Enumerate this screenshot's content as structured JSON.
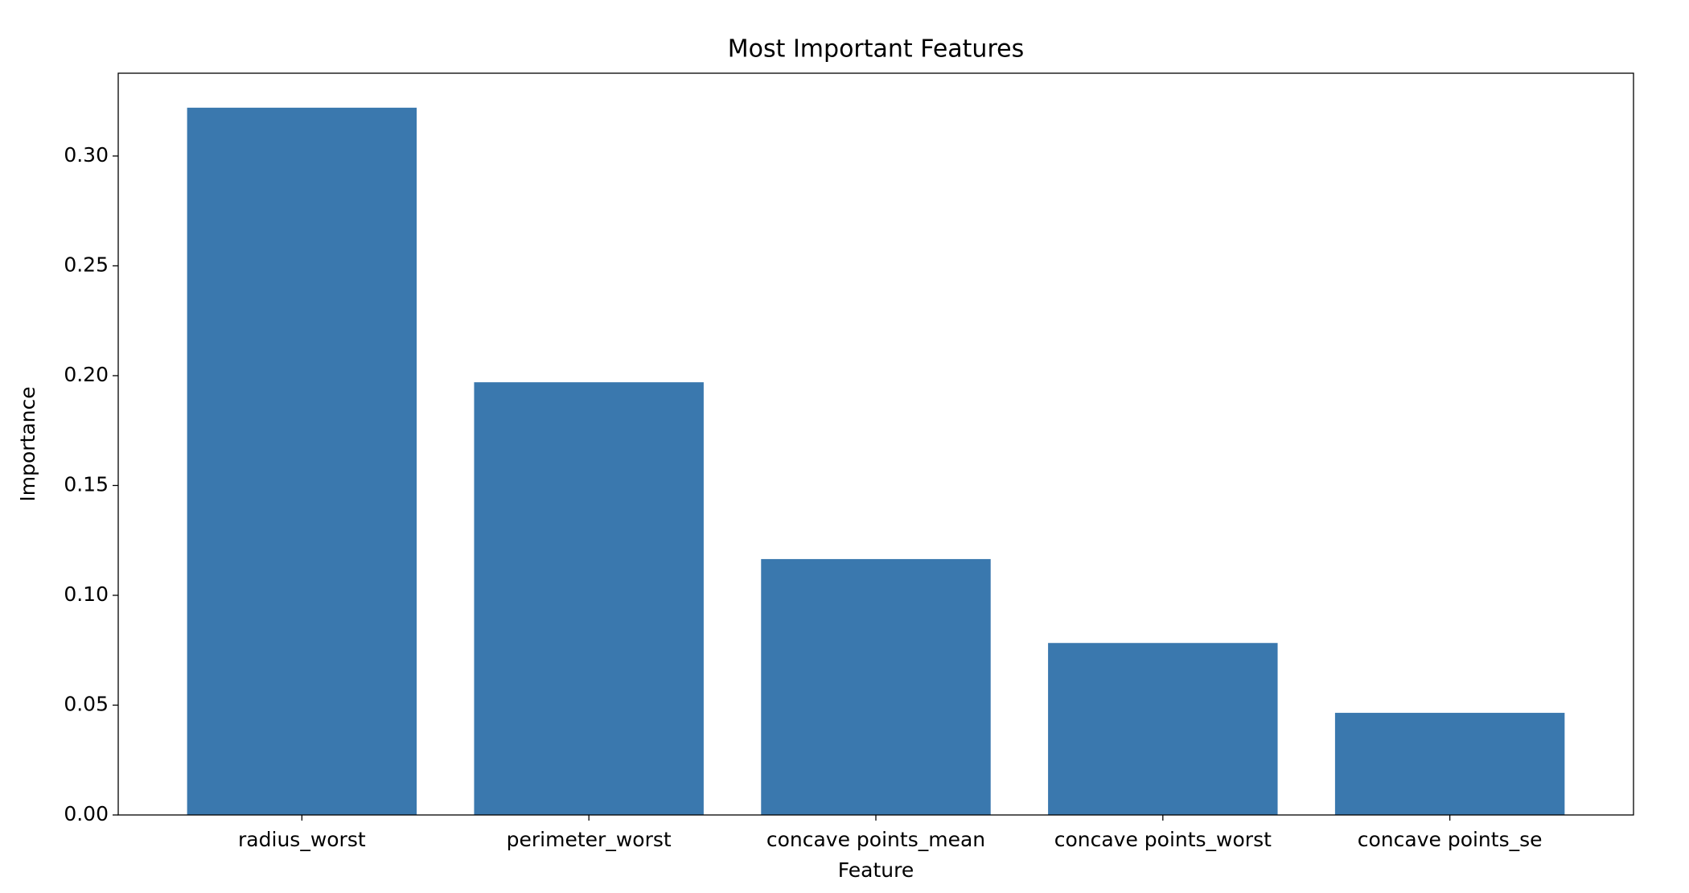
{
  "chart_data": {
    "type": "bar",
    "title": "Most Important Features",
    "x_label": "Feature",
    "y_label": "Importance",
    "categories": [
      "radius_worst",
      "perimeter_worst",
      "concave points_mean",
      "concave points_worst",
      "concave points_se"
    ],
    "values": [
      0.322,
      0.197,
      0.1165,
      0.0783,
      0.0465
    ],
    "color": "#3a78ae",
    "ylim": [
      0,
      0.3377
    ],
    "yticks": [
      {
        "value": 0,
        "label": "0.00"
      },
      {
        "value": 0.05,
        "label": "0.05"
      },
      {
        "value": 0.1,
        "label": "0.10"
      },
      {
        "value": 0.15,
        "label": "0.15"
      },
      {
        "value": 0.2,
        "label": "0.20"
      },
      {
        "value": 0.25,
        "label": "0.25"
      },
      {
        "value": 0.3,
        "label": "0.30"
      }
    ],
    "grid": false
  }
}
